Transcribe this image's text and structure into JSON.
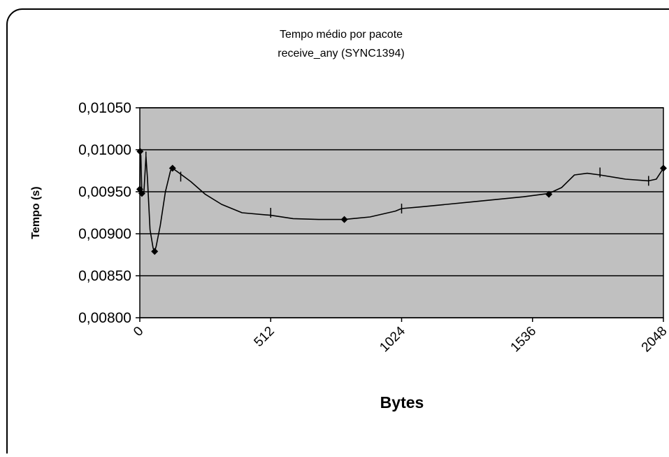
{
  "chart_data": {
    "type": "line",
    "title_lines": [
      "Tempo médio por pacote",
      "receive_any (SYNC1394)"
    ],
    "xlabel": "Bytes",
    "ylabel": "Tempo (s)",
    "xlim": [
      0,
      2048
    ],
    "ylim": [
      0.008,
      0.0105
    ],
    "x_ticks": [
      "0",
      "512",
      "1024",
      "1536",
      "2048"
    ],
    "y_ticks": [
      "0,01050",
      "0,01000",
      "0,00950",
      "0,00900",
      "0,00850",
      "0,00800"
    ],
    "grid": true,
    "plot_background": "#c0c0c0",
    "line_color": "#000000",
    "series": [
      {
        "points": [
          [
            0,
            0.00953
          ],
          [
            1,
            0.00998
          ],
          [
            4,
            0.00993
          ],
          [
            8,
            0.00948
          ],
          [
            16,
            0.0095
          ],
          [
            24,
            0.00992
          ],
          [
            30,
            0.00965
          ],
          [
            40,
            0.00905
          ],
          [
            52,
            0.00883
          ],
          [
            58,
            0.00879
          ],
          [
            64,
            0.00885
          ],
          [
            80,
            0.0091
          ],
          [
            100,
            0.0095
          ],
          [
            120,
            0.00975
          ],
          [
            128,
            0.00978
          ],
          [
            160,
            0.00971
          ],
          [
            200,
            0.00962
          ],
          [
            256,
            0.00947
          ],
          [
            320,
            0.00935
          ],
          [
            400,
            0.00925
          ],
          [
            512,
            0.00922
          ],
          [
            600,
            0.00918
          ],
          [
            700,
            0.00917
          ],
          [
            800,
            0.00917
          ],
          [
            900,
            0.0092
          ],
          [
            1000,
            0.00927
          ],
          [
            1024,
            0.0093
          ],
          [
            1100,
            0.00932
          ],
          [
            1200,
            0.00935
          ],
          [
            1300,
            0.00938
          ],
          [
            1400,
            0.00941
          ],
          [
            1500,
            0.00944
          ],
          [
            1600,
            0.00948
          ],
          [
            1650,
            0.00955
          ],
          [
            1700,
            0.0097
          ],
          [
            1750,
            0.00972
          ],
          [
            1800,
            0.0097
          ],
          [
            1900,
            0.00965
          ],
          [
            1990,
            0.00963
          ],
          [
            2020,
            0.00965
          ],
          [
            2048,
            0.00978
          ]
        ],
        "diamond_markers": [
          [
            0,
            0.00953
          ],
          [
            1,
            0.00998
          ],
          [
            8,
            0.00948
          ],
          [
            58,
            0.00879
          ],
          [
            128,
            0.00978
          ],
          [
            800,
            0.00917
          ],
          [
            1600,
            0.00947
          ],
          [
            2048,
            0.00978
          ]
        ],
        "dash_markers": [
          [
            24,
            0.00992
          ],
          [
            160,
            0.00968
          ],
          [
            512,
            0.00925
          ],
          [
            1024,
            0.0093
          ],
          [
            1800,
            0.00973
          ],
          [
            1990,
            0.00963
          ]
        ]
      }
    ]
  }
}
